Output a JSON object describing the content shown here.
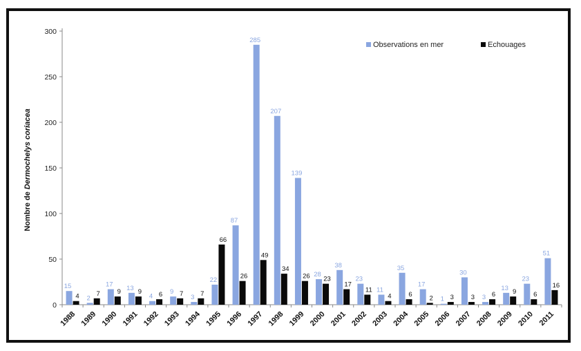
{
  "chart_data": {
    "type": "bar",
    "ylabel": "Nombre de Dermochelys coriacea",
    "ylabel_parts": [
      "Nombre de ",
      "Dermochelys  coriacea"
    ],
    "xlabel": "",
    "ylim": [
      0,
      300
    ],
    "yticks": [
      "0",
      "50",
      "100",
      "150",
      "200",
      "250",
      "300"
    ],
    "grid": false,
    "legend_position": "top-right",
    "categories": [
      "1988",
      "1989",
      "1990",
      "1991",
      "1992",
      "1993",
      "1994",
      "1995",
      "1996",
      "1997",
      "1998",
      "1999",
      "2000",
      "2001",
      "2002",
      "2003",
      "2004",
      "2005",
      "2006",
      "2007",
      "2008",
      "2009",
      "2010",
      "2011"
    ],
    "series": [
      {
        "name": "Observations en mer",
        "color": "#8aa6e0",
        "label_color": "#8aa6e0",
        "values": [
          15,
          2,
          17,
          13,
          4,
          9,
          3,
          22,
          87,
          285,
          207,
          139,
          28,
          38,
          23,
          11,
          35,
          17,
          1,
          30,
          3,
          13,
          23,
          51
        ],
        "labels": [
          "15",
          "2",
          "17",
          "13",
          "4",
          "9",
          "3",
          "22",
          "87",
          "285",
          "207",
          "139",
          "28",
          "38",
          "23",
          "11",
          "35",
          "17",
          "1",
          "30",
          "3",
          "13",
          "23",
          "51"
        ]
      },
      {
        "name": "Echouages",
        "color": "#0a0a0a",
        "label_color": "#111111",
        "values": [
          4,
          7,
          9,
          9,
          6,
          7,
          7,
          66,
          26,
          49,
          34,
          26,
          23,
          17,
          11,
          4,
          6,
          2,
          3,
          3,
          6,
          9,
          6,
          16
        ],
        "labels": [
          "4",
          "7",
          "9",
          "9",
          "6",
          "7",
          "7",
          "66",
          "26",
          "49",
          "34",
          "26",
          "23",
          "17",
          "11",
          "4",
          "6",
          "2",
          "3",
          "3",
          "6",
          "9",
          "6",
          "16"
        ]
      }
    ]
  }
}
